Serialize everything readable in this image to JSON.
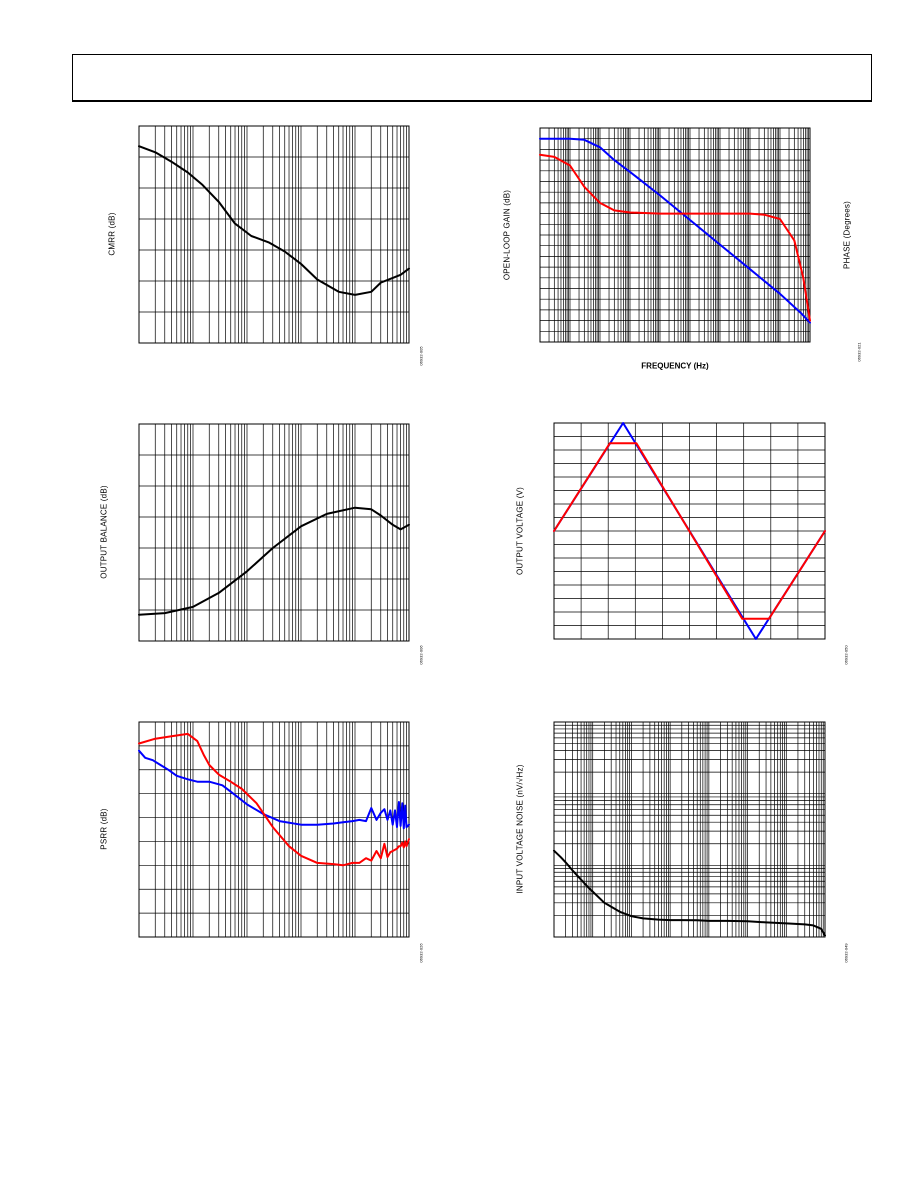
{
  "chart_data": [
    {
      "id": "cmrr",
      "type": "line",
      "title": "",
      "ylabel": "CMRR (dB)",
      "xlabel": "",
      "xscale": "log",
      "xlim": [
        1000,
        100000000
      ],
      "ylim": [
        0,
        7
      ],
      "grid": true,
      "fig_id": "06932-005",
      "series": [
        {
          "color": "#000000",
          "x": [
            1000,
            2000,
            4000,
            8000,
            15000,
            30000,
            60000,
            120000,
            250000,
            500000,
            1000000,
            2000000,
            5000000,
            10000000,
            20000000,
            30000000,
            50000000,
            70000000,
            100000000
          ],
          "y": [
            6.35,
            6.15,
            5.85,
            5.5,
            5.1,
            4.55,
            3.85,
            3.45,
            3.25,
            2.95,
            2.55,
            2.05,
            1.65,
            1.55,
            1.65,
            1.95,
            2.1,
            2.2,
            2.4
          ]
        }
      ]
    },
    {
      "id": "gain-phase",
      "type": "line",
      "title": "",
      "ylabel": "OPEN-LOOP GAIN (dB)",
      "y2label": "PHASE (Degrees)",
      "xlabel": "FREQUENCY (Hz)",
      "xscale": "log",
      "xlim": [
        1,
        1000000000
      ],
      "ylim": [
        0,
        20
      ],
      "grid": true,
      "fig_id": "06932-021",
      "series": [
        {
          "color": "#0000ff",
          "x": [
            1,
            10,
            30,
            100,
            300,
            1000,
            10000,
            100000,
            1000000,
            10000000,
            100000000,
            500000000,
            1000000000
          ],
          "y": [
            19.0,
            19.0,
            18.9,
            18.2,
            17.0,
            15.9,
            13.7,
            11.4,
            9.1,
            6.8,
            4.5,
            2.7,
            1.8
          ]
        },
        {
          "color": "#ff0000",
          "x": [
            1,
            3,
            10,
            30,
            100,
            300,
            1000,
            10000,
            100000,
            1000000,
            10000000,
            30000000,
            100000000,
            300000000,
            600000000,
            1000000000
          ],
          "y": [
            17.5,
            17.3,
            16.5,
            14.5,
            13.0,
            12.3,
            12.1,
            12.0,
            12.0,
            12.0,
            12.0,
            11.9,
            11.5,
            9.5,
            6.0,
            2.0
          ]
        }
      ]
    },
    {
      "id": "output-balance",
      "type": "line",
      "title": "",
      "ylabel": "OUTPUT BALANCE (dB)",
      "xlabel": "",
      "xscale": "log",
      "xlim": [
        1000,
        100000000
      ],
      "ylim": [
        0,
        7
      ],
      "grid": true,
      "fig_id": "06932-006",
      "series": [
        {
          "color": "#000000",
          "x": [
            1000,
            3000,
            10000,
            30000,
            100000,
            300000,
            1000000,
            3000000,
            10000000,
            20000000,
            30000000,
            50000000,
            70000000,
            100000000
          ],
          "y": [
            0.85,
            0.9,
            1.1,
            1.55,
            2.25,
            3.0,
            3.7,
            4.1,
            4.3,
            4.25,
            4.05,
            3.75,
            3.6,
            3.75
          ]
        }
      ]
    },
    {
      "id": "output-voltage",
      "type": "line",
      "title": "",
      "ylabel": "OUTPUT VOLTAGE (V)",
      "xlabel": "",
      "xscale": "linear",
      "xlim": [
        0,
        10
      ],
      "ylim": [
        0,
        16
      ],
      "grid": true,
      "fig_id": "06932-050",
      "series": [
        {
          "color": "#0000ff",
          "x": [
            0,
            2.55,
            7.45,
            10
          ],
          "y": [
            8.0,
            16.0,
            0.0,
            8.0
          ]
        },
        {
          "color": "#ff0000",
          "x": [
            0,
            2.06,
            3.04,
            6.95,
            7.93,
            10
          ],
          "y": [
            8.0,
            14.5,
            14.5,
            1.5,
            1.5,
            8.0
          ]
        }
      ]
    },
    {
      "id": "psrr",
      "type": "line",
      "title": "",
      "ylabel": "PSRR (dB)",
      "xlabel": "",
      "xscale": "log",
      "xlim": [
        1000,
        100000000
      ],
      "ylim": [
        0,
        9
      ],
      "grid": true,
      "fig_id": "06932-026",
      "series": [
        {
          "color": "#0000ff",
          "x": [
            1000,
            1300,
            1800,
            2500,
            3500,
            5000,
            8000,
            12000,
            20000,
            35000,
            60000,
            100000,
            200000,
            400000,
            1000000,
            2000000,
            4000000,
            6000000,
            9000000,
            12000000,
            16000000,
            20000000,
            25000000,
            30000000,
            35000000,
            40000000,
            45000000,
            50000000,
            55000000,
            60000000,
            65000000,
            70000000,
            75000000,
            80000000,
            85000000,
            90000000,
            100000000
          ],
          "y": [
            7.8,
            7.5,
            7.4,
            7.2,
            7.0,
            6.75,
            6.6,
            6.5,
            6.5,
            6.35,
            5.95,
            5.55,
            5.15,
            4.85,
            4.7,
            4.7,
            4.75,
            4.8,
            4.85,
            4.9,
            4.85,
            5.4,
            4.9,
            5.2,
            5.35,
            4.9,
            5.3,
            4.7,
            5.3,
            4.6,
            5.65,
            4.65,
            5.6,
            4.55,
            5.5,
            4.6,
            4.7
          ]
        },
        {
          "color": "#ff0000",
          "x": [
            1000,
            2000,
            4000,
            8000,
            12000,
            16000,
            20000,
            30000,
            50000,
            80000,
            150000,
            300000,
            600000,
            1000000,
            2000000,
            4000000,
            6000000,
            9000000,
            12000000,
            16000000,
            20000000,
            25000000,
            30000000,
            35000000,
            40000000,
            45000000,
            50000000,
            55000000,
            60000000,
            65000000,
            70000000,
            75000000,
            80000000,
            85000000,
            90000000,
            100000000
          ],
          "y": [
            8.1,
            8.3,
            8.4,
            8.5,
            8.2,
            7.6,
            7.2,
            6.8,
            6.5,
            6.2,
            5.6,
            4.6,
            3.8,
            3.4,
            3.1,
            3.05,
            3.0,
            3.1,
            3.1,
            3.3,
            3.2,
            3.6,
            3.3,
            3.9,
            3.35,
            3.55,
            3.6,
            3.65,
            3.7,
            3.8,
            3.8,
            3.95,
            3.75,
            4.0,
            3.8,
            4.1
          ]
        }
      ]
    },
    {
      "id": "input-noise",
      "type": "line",
      "title": "",
      "ylabel": "INPUT VOLTAGE NOISE (nV/√Hz)",
      "xlabel": "",
      "xscale": "log",
      "xlim": [
        1,
        10000000
      ],
      "yscale": "log",
      "ylim": [
        1,
        1000
      ],
      "grid": true,
      "fig_id": "06932-049",
      "series": [
        {
          "color": "#000000",
          "x": [
            1,
            1.5,
            2,
            3,
            5,
            8,
            10,
            20,
            50,
            100,
            200,
            500,
            1000,
            2000,
            5000,
            10000,
            30000,
            100000,
            300000,
            1000000,
            3000000,
            5000000,
            8000000,
            10000000
          ],
          "y": [
            16.0,
            13.0,
            11.0,
            8.5,
            6.3,
            4.8,
            4.3,
            3.0,
            2.25,
            1.95,
            1.82,
            1.75,
            1.72,
            1.72,
            1.71,
            1.68,
            1.68,
            1.66,
            1.6,
            1.55,
            1.5,
            1.45,
            1.3,
            1.05
          ]
        }
      ]
    }
  ]
}
